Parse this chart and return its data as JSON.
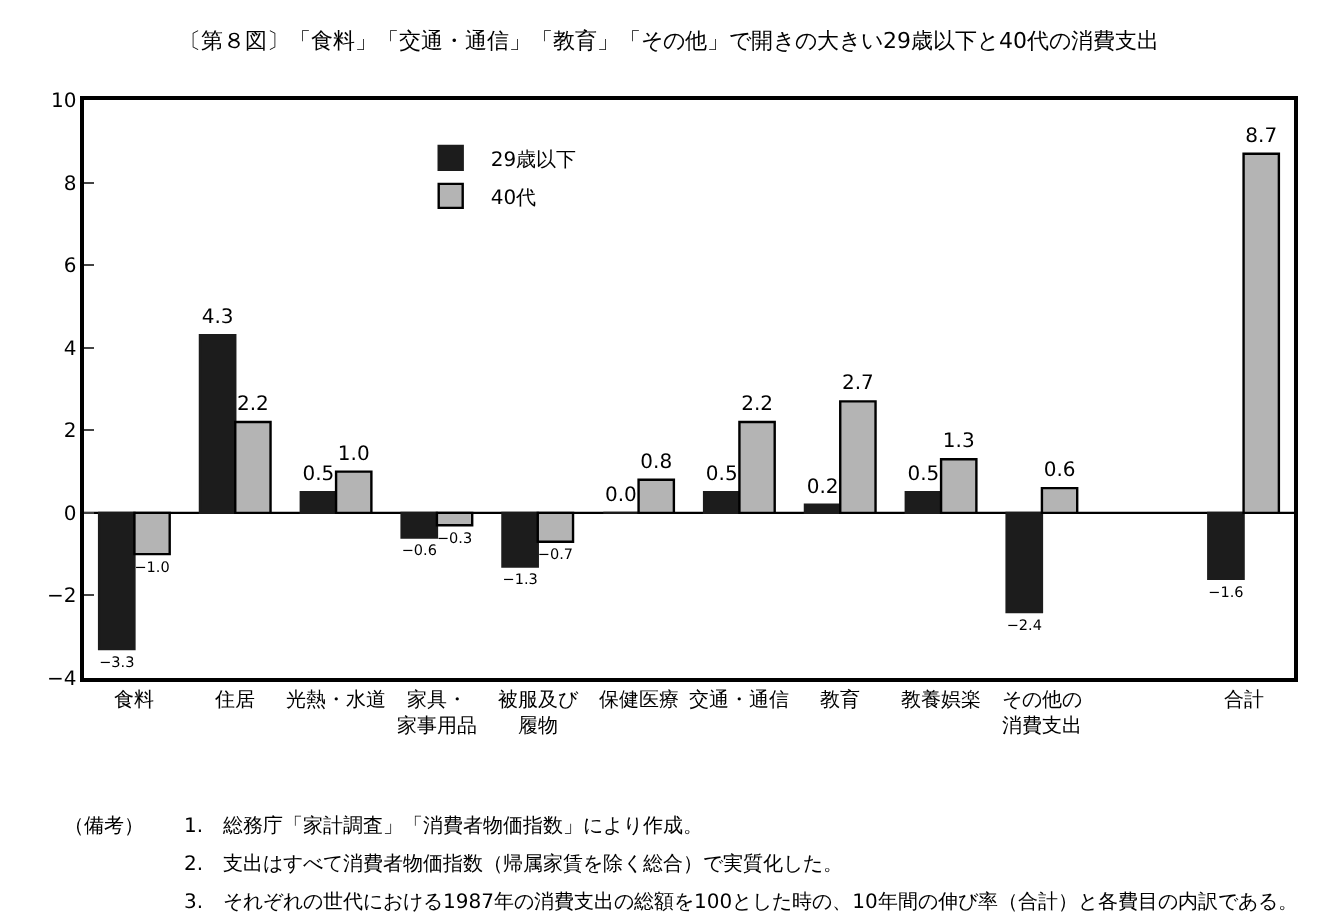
{
  "chart_data": {
    "type": "bar",
    "title": "〔第８図〕「食料」「交通・通信」「教育」「その他」で開きの大きい29歳以下と40代の消費支出",
    "categories": [
      "食料",
      "住居",
      "光熱・水道",
      "家具・家事用品",
      "被服及び履物",
      "保健医療",
      "交通・通信",
      "教育",
      "教養娯楽",
      "その他の消費支出",
      null,
      "合計"
    ],
    "series": [
      {
        "name": "29歳以下",
        "color": "#1c1c1c",
        "values": [
          -3.3,
          4.3,
          0.5,
          -0.6,
          -1.3,
          0.0,
          0.5,
          0.2,
          0.5,
          -2.4,
          null,
          -1.6
        ],
        "value_labels": [
          "−3.3",
          "4.3",
          "0.5",
          "−0.6",
          "−1.3",
          "0.0",
          "0.5",
          "0.2",
          "0.5",
          "−2.4",
          null,
          "−1.6"
        ]
      },
      {
        "name": "40代",
        "color": "#b4b4b4",
        "values": [
          -1.0,
          2.2,
          1.0,
          -0.3,
          -0.7,
          0.8,
          2.2,
          2.7,
          1.3,
          0.6,
          null,
          8.7
        ],
        "value_labels": [
          "−1.0",
          "2.2",
          "1.0",
          "−0.3",
          "−0.7",
          "0.8",
          "2.2",
          "2.7",
          "1.3",
          "0.6",
          null,
          "8.7"
        ]
      }
    ],
    "ylim": [
      -4,
      10
    ],
    "yticks": [
      -4,
      -2,
      0,
      2,
      4,
      6,
      8,
      10
    ],
    "grid": false,
    "legend": "top left",
    "ref_lines": [
      {
        "axis": "y",
        "value": 0,
        "color": "#000000",
        "line_style": "solid"
      }
    ],
    "annotations": [
      "（備考）",
      "1.　総務庁「家計調査」「消費者物価指数」により作成。",
      "2.　支出はすべて消費者物価指数（帰属家賃を除く総合）で実質化した。",
      "3.　それぞれの世代における1987年の消費支出の総額を100とした時の、10年間の伸び率（合計）と各費目の内訳である。"
    ]
  }
}
